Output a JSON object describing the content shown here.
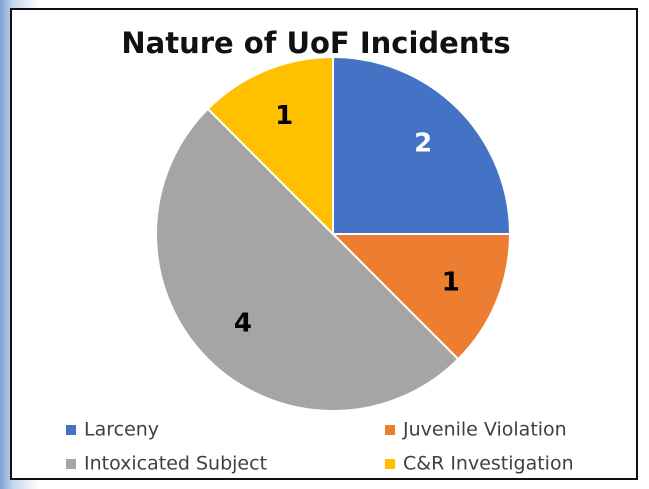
{
  "chart_data": {
    "type": "pie",
    "title": "Nature of UoF Incidents",
    "categories": [
      "Larceny",
      "Juvenile Violation",
      "Intoxicated Subject",
      "C&R Investigation"
    ],
    "values": [
      2,
      1,
      4,
      1
    ],
    "colors": [
      "#4472c4",
      "#ed7d31",
      "#a5a5a5",
      "#ffc000"
    ],
    "value_label_colors": [
      "#ffffff",
      "#000000",
      "#000000",
      "#000000"
    ],
    "legend": "bottom"
  }
}
